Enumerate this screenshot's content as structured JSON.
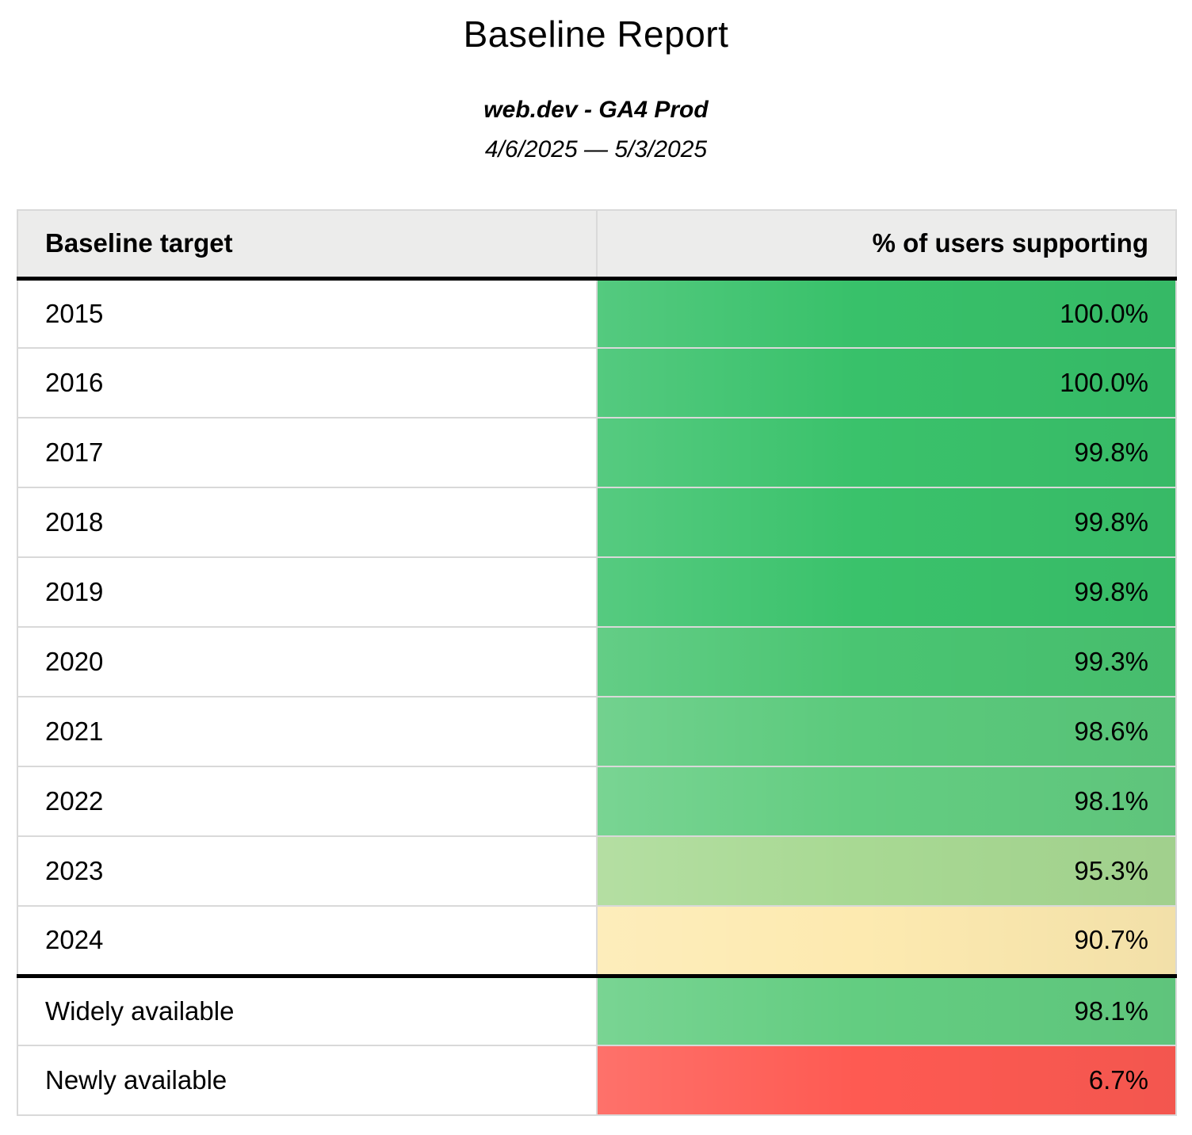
{
  "report": {
    "title": "Baseline Report",
    "subtitle": "web.dev - GA4 Prod",
    "date_range": "4/6/2025 — 5/3/2025"
  },
  "table": {
    "header": {
      "col1": "Baseline target",
      "col2": "% of users supporting"
    },
    "rows": [
      {
        "label": "2015",
        "value": "100.0%",
        "bg": "#38c16a"
      },
      {
        "label": "2016",
        "value": "100.0%",
        "bg": "#38c16a"
      },
      {
        "label": "2017",
        "value": "99.8%",
        "bg": "#3ac26b"
      },
      {
        "label": "2018",
        "value": "99.8%",
        "bg": "#3ac26b"
      },
      {
        "label": "2019",
        "value": "99.8%",
        "bg": "#3ac26b"
      },
      {
        "label": "2020",
        "value": "99.3%",
        "bg": "#4ac572"
      },
      {
        "label": "2021",
        "value": "98.6%",
        "bg": "#5bca7c"
      },
      {
        "label": "2022",
        "value": "98.1%",
        "bg": "#63cd81"
      },
      {
        "label": "2023",
        "value": "95.3%",
        "bg": "#a8d993"
      },
      {
        "label": "2024",
        "value": "90.7%",
        "bg": "#fdeab0"
      },
      {
        "label": "Widely available",
        "value": "98.1%",
        "bg": "#63cd81"
      },
      {
        "label": "Newly available",
        "value": "6.7%",
        "bg": "#fe5a52"
      }
    ]
  },
  "chart_data": {
    "type": "table",
    "title": "Baseline Report",
    "subtitle": "web.dev - GA4 Prod",
    "date_range": "4/6/2025 — 5/3/2025",
    "columns": [
      "Baseline target",
      "% of users supporting"
    ],
    "rows": [
      [
        "2015",
        100.0
      ],
      [
        "2016",
        100.0
      ],
      [
        "2017",
        99.8
      ],
      [
        "2018",
        99.8
      ],
      [
        "2019",
        99.8
      ],
      [
        "2020",
        99.3
      ],
      [
        "2021",
        98.6
      ],
      [
        "2022",
        98.1
      ],
      [
        "2023",
        95.3
      ],
      [
        "2024",
        90.7
      ],
      [
        "Widely available",
        98.1
      ],
      [
        "Newly available",
        6.7
      ]
    ],
    "value_unit": "%",
    "color_scale": {
      "low": "#fe5a52",
      "mid": "#fdeab0",
      "high": "#38c16a"
    },
    "notes": "Heatmap-colored table; thick black rule separates year rows from availability summary rows"
  }
}
